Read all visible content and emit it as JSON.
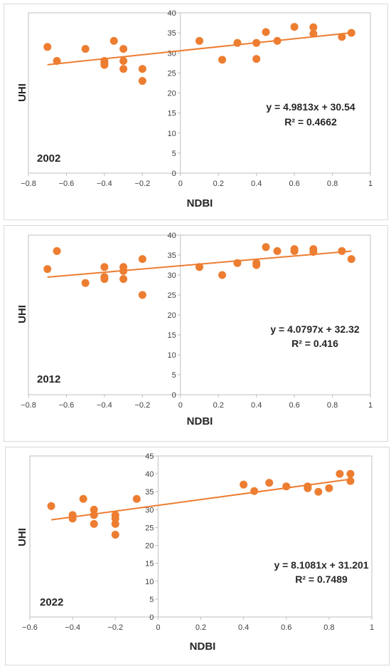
{
  "colors": {
    "marker": "#ED7D31",
    "trendline": "#ED7D31",
    "axis": "#BFBFBF",
    "text": "#404040",
    "frame": "#D9D9D9"
  },
  "chart_data": [
    {
      "type": "scatter",
      "panel_label": "2002",
      "xlabel": "NDBI",
      "ylabel": "UHI",
      "xlim": [
        -0.8,
        1
      ],
      "ylim": [
        0,
        40
      ],
      "x_ticks": [
        "−0.8",
        "−0.6",
        "−0.4",
        "−0.2",
        "0",
        "0.2",
        "0.4",
        "0.6",
        "0.8",
        "1"
      ],
      "y_ticks": [
        "0",
        "5",
        "10",
        "15",
        "20",
        "25",
        "30",
        "35",
        "40"
      ],
      "grid": false,
      "trendline": {
        "slope": 4.9813,
        "intercept": 30.54,
        "x_range": [
          -0.7,
          0.9
        ]
      },
      "equation": "y = 4.9813x + 30.54",
      "r_squared": "R² = 0.4662",
      "points": [
        [
          -0.7,
          31.5
        ],
        [
          -0.65,
          28
        ],
        [
          -0.5,
          31
        ],
        [
          -0.4,
          28
        ],
        [
          -0.4,
          27.5
        ],
        [
          -0.4,
          27
        ],
        [
          -0.35,
          33
        ],
        [
          -0.3,
          31
        ],
        [
          -0.3,
          28
        ],
        [
          -0.3,
          26
        ],
        [
          -0.2,
          26
        ],
        [
          -0.2,
          23
        ],
        [
          0.1,
          33
        ],
        [
          0.22,
          28.3
        ],
        [
          0.3,
          32.5
        ],
        [
          0.4,
          32.5
        ],
        [
          0.4,
          28.5
        ],
        [
          0.45,
          35.2
        ],
        [
          0.51,
          33
        ],
        [
          0.6,
          36.5
        ],
        [
          0.7,
          36.4
        ],
        [
          0.7,
          34.8
        ],
        [
          0.85,
          34
        ],
        [
          0.9,
          35
        ]
      ]
    },
    {
      "type": "scatter",
      "panel_label": "2012",
      "xlabel": "NDBI",
      "ylabel": "UHI",
      "xlim": [
        -0.8,
        1
      ],
      "ylim": [
        0,
        40
      ],
      "x_ticks": [
        "−0.8",
        "−0.6",
        "−0.4",
        "−0.2",
        "0",
        "0.2",
        "0.4",
        "0.6",
        "0.8",
        "1"
      ],
      "y_ticks": [
        "0",
        "5",
        "10",
        "15",
        "20",
        "25",
        "30",
        "35",
        "40"
      ],
      "grid": false,
      "trendline": {
        "slope": 4.0797,
        "intercept": 32.32,
        "x_range": [
          -0.7,
          0.9
        ]
      },
      "equation": "y = 4.0797x + 32.32",
      "r_squared": "R² = 0.416",
      "points": [
        [
          -0.7,
          31.5
        ],
        [
          -0.65,
          36
        ],
        [
          -0.5,
          28
        ],
        [
          -0.4,
          32
        ],
        [
          -0.4,
          29.5
        ],
        [
          -0.4,
          29
        ],
        [
          -0.3,
          32
        ],
        [
          -0.3,
          31
        ],
        [
          -0.3,
          29
        ],
        [
          -0.2,
          34
        ],
        [
          -0.2,
          25
        ],
        [
          0.1,
          32
        ],
        [
          0.22,
          30
        ],
        [
          0.3,
          33
        ],
        [
          0.4,
          33
        ],
        [
          0.4,
          32.5
        ],
        [
          0.45,
          37
        ],
        [
          0.51,
          36
        ],
        [
          0.6,
          36.5
        ],
        [
          0.6,
          36
        ],
        [
          0.7,
          36.5
        ],
        [
          0.7,
          35.8
        ],
        [
          0.85,
          36
        ],
        [
          0.9,
          34
        ]
      ]
    },
    {
      "type": "scatter",
      "panel_label": "2022",
      "xlabel": "NDBI",
      "ylabel": "UHI",
      "xlim": [
        -0.6,
        1
      ],
      "ylim": [
        0,
        45
      ],
      "x_ticks": [
        "−0.6",
        "−0.4",
        "−0.2",
        "0",
        "0.2",
        "0.4",
        "0.6",
        "0.8",
        "1"
      ],
      "y_ticks": [
        "0",
        "5",
        "10",
        "15",
        "20",
        "25",
        "30",
        "35",
        "40",
        "45"
      ],
      "grid": false,
      "trendline": {
        "slope": 8.1081,
        "intercept": 31.201,
        "x_range": [
          -0.5,
          0.9
        ]
      },
      "equation": "y = 8.1081x + 31.201",
      "r_squared": "R² = 0.7489",
      "points": [
        [
          -0.5,
          31
        ],
        [
          -0.4,
          28.5
        ],
        [
          -0.4,
          27.5
        ],
        [
          -0.35,
          33
        ],
        [
          -0.3,
          30
        ],
        [
          -0.3,
          28.5
        ],
        [
          -0.3,
          26
        ],
        [
          -0.2,
          28.5
        ],
        [
          -0.2,
          27.5
        ],
        [
          -0.2,
          26
        ],
        [
          -0.2,
          23
        ],
        [
          -0.1,
          33
        ],
        [
          0.4,
          37
        ],
        [
          0.45,
          35.2
        ],
        [
          0.52,
          37.5
        ],
        [
          0.6,
          36.5
        ],
        [
          0.7,
          36.5
        ],
        [
          0.7,
          36
        ],
        [
          0.75,
          35
        ],
        [
          0.8,
          36
        ],
        [
          0.85,
          40
        ],
        [
          0.9,
          40
        ],
        [
          0.9,
          38
        ]
      ]
    }
  ]
}
